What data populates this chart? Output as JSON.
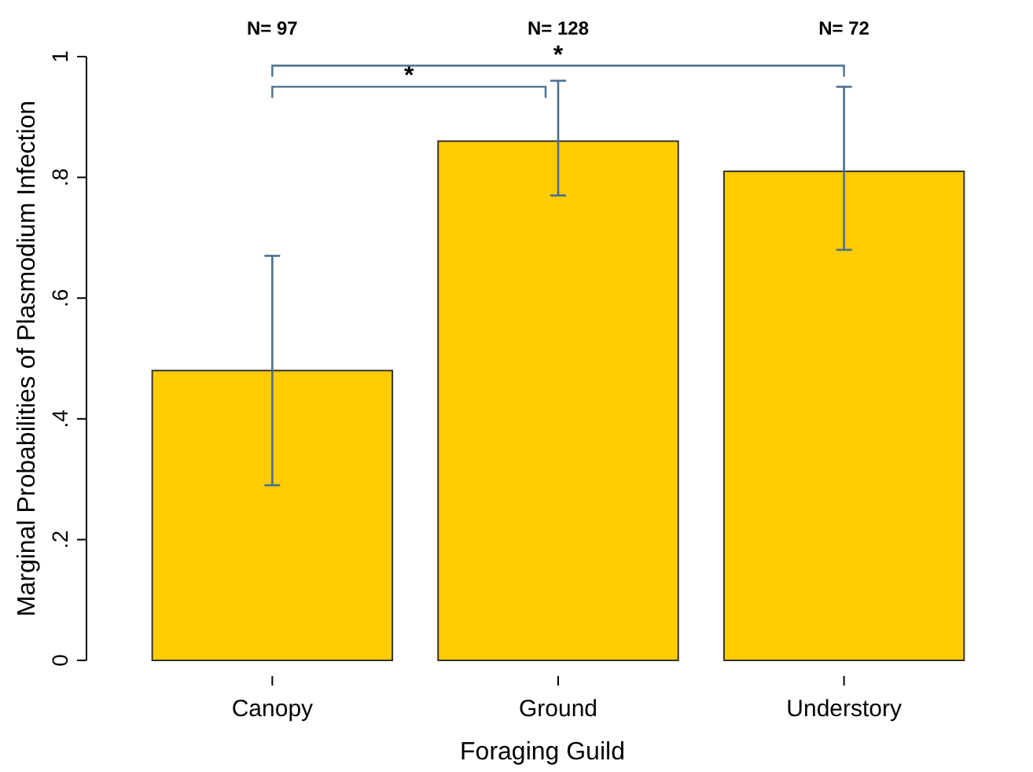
{
  "chart_data": {
    "type": "bar",
    "xlabel": "Foraging Guild",
    "ylabel": "Marginal Probabilities of Plasmodium Infection",
    "categories": [
      "Canopy",
      "Ground",
      "Understory"
    ],
    "values": [
      0.48,
      0.86,
      0.81
    ],
    "errors": [
      [
        0.29,
        0.67
      ],
      [
        0.77,
        0.96
      ],
      [
        0.68,
        0.95
      ]
    ],
    "color": "#ffcc00",
    "ylim": [
      0,
      1
    ],
    "yticks": [
      {
        "value": 0,
        "label": "0"
      },
      {
        "value": 0.2,
        "label": ".2"
      },
      {
        "value": 0.4,
        "label": ".4"
      },
      {
        "value": 0.6,
        "label": ".6"
      },
      {
        "value": 0.8,
        "label": ".8"
      },
      {
        "value": 1,
        "label": "1"
      }
    ],
    "grid": false,
    "annotations": [
      "N= 97",
      "N= 128",
      "N= 72",
      "*",
      "*"
    ]
  }
}
